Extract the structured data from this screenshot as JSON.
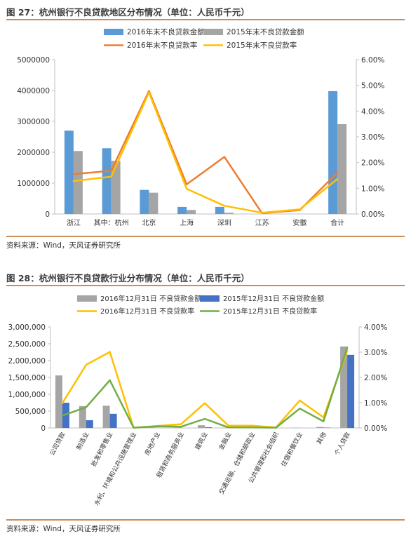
{
  "fig1": {
    "title": "图 27：杭州银行不良贷款地区分布情况（单位：人民币千元）",
    "source": "资料来源：Wind，天风证券研究所"
  },
  "fig2": {
    "title": "图 28：杭州银行不良贷款行业分布情况（单位：人民币千元）",
    "source": "资料来源：Wind，天风证券研究所"
  },
  "colors": {
    "bar2016_fig1": "#5b9bd5",
    "bar2015_fig1": "#a5a5a5",
    "line2016_fig1": "#ed7d31",
    "line2015_fig1": "#ffc000",
    "bar2016_fig2": "#a5a5a5",
    "bar2015_fig2": "#4472c4",
    "line2016_fig2": "#ffc000",
    "line2015_fig2": "#70ad47",
    "rule": "#c98d57"
  },
  "chart_data": [
    {
      "type": "bar",
      "categories": [
        "浙江",
        "其中：杭州",
        "北京",
        "上海",
        "深圳",
        "江苏",
        "安徽",
        "合计"
      ],
      "series": [
        {
          "name": "2016年末不良贷款金额",
          "kind": "bar",
          "axis": "left",
          "values": [
            2700000,
            2130000,
            780000,
            230000,
            230000,
            0,
            0,
            3980000
          ]
        },
        {
          "name": "2015年末不良贷款金额",
          "kind": "bar",
          "axis": "left",
          "values": [
            2040000,
            1720000,
            690000,
            130000,
            40000,
            0,
            0,
            2910000
          ]
        },
        {
          "name": "2016年末不良贷款率",
          "kind": "line",
          "axis": "right",
          "values": [
            0.0155,
            0.0168,
            0.0478,
            0.0115,
            0.0222,
            0.0003,
            0.0015,
            0.0161
          ]
        },
        {
          "name": "2015年末不良贷款率",
          "kind": "line",
          "axis": "right",
          "values": [
            0.0128,
            0.0145,
            0.0472,
            0.0098,
            0.0032,
            0.0005,
            0.0018,
            0.0136
          ]
        }
      ],
      "ylim_left": [
        0,
        5000000
      ],
      "yticks_left": [
        "0",
        "1000000",
        "2000000",
        "3000000",
        "4000000",
        "5000000"
      ],
      "ylim_right": [
        0,
        0.06
      ],
      "yticks_right": [
        "0.00%",
        "1.00%",
        "2.00%",
        "3.00%",
        "4.00%",
        "5.00%",
        "6.00%"
      ],
      "legend_position": "top"
    },
    {
      "type": "bar",
      "categories": [
        "公司贷款",
        "制造业",
        "批发和零售业",
        "水利、环境和公共设施管理业",
        "房地产业",
        "租赁和商务服务业",
        "建筑业",
        "金融业",
        "交通运输、仓储和邮政业",
        "公共管理和社会组织",
        "住宿和餐饮业",
        "其他",
        "个人贷款"
      ],
      "series": [
        {
          "name": "2016年12月31日 不良贷款金额",
          "kind": "bar",
          "axis": "left",
          "values": [
            1560000,
            650000,
            660000,
            0,
            10000,
            10000,
            80000,
            10000,
            0,
            0,
            10000,
            30000,
            2420000
          ]
        },
        {
          "name": "2015年12月31日 不良贷款金额",
          "kind": "bar",
          "axis": "left",
          "values": [
            750000,
            230000,
            420000,
            0,
            0,
            0,
            20000,
            0,
            0,
            0,
            0,
            10000,
            2170000
          ]
        },
        {
          "name": "2016年12月31日 不良贷款率",
          "kind": "line",
          "axis": "right",
          "values": [
            0.0098,
            0.025,
            0.0301,
            0.0001,
            0.0008,
            0.0015,
            0.0098,
            0.0009,
            0.0009,
            0.0002,
            0.0109,
            0.0042,
            0.0306
          ]
        },
        {
          "name": "2015年12月31日 不良贷款率",
          "kind": "line",
          "axis": "right",
          "values": [
            0.0049,
            0.0082,
            0.0189,
            0.0001,
            0.0006,
            0.0005,
            0.0036,
            0.0002,
            0.0002,
            0.0001,
            0.0077,
            0.0026,
            0.0318
          ]
        }
      ],
      "ylim_left": [
        0,
        3000000
      ],
      "yticks_left": [
        "0",
        "500,000",
        "1,000,000",
        "1,500,000",
        "2,000,000",
        "2,500,000",
        "3,000,000"
      ],
      "ylim_right": [
        0,
        0.04
      ],
      "yticks_right": [
        "0.00%",
        "1.00%",
        "2.00%",
        "3.00%",
        "4.00%"
      ],
      "legend_position": "top"
    }
  ]
}
